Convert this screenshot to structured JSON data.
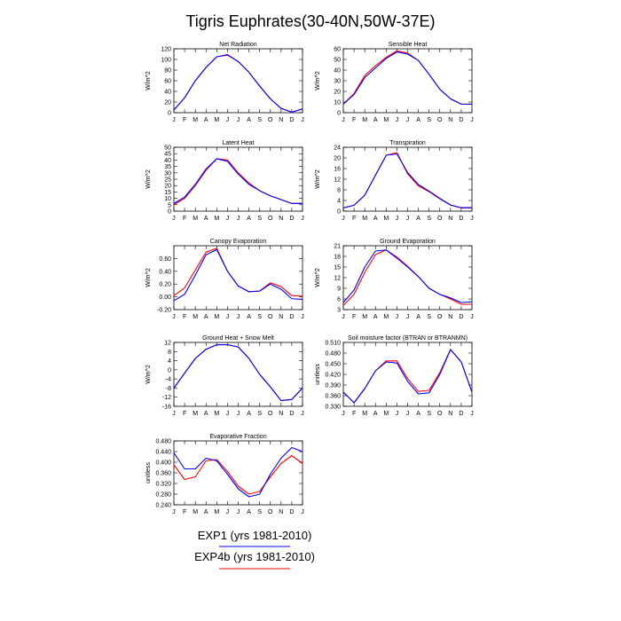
{
  "title": "Tigris Euphrates(30-40N,50W-37E)",
  "months": [
    "J",
    "F",
    "M",
    "A",
    "M",
    "J",
    "J",
    "A",
    "S",
    "O",
    "N",
    "D",
    "J"
  ],
  "legend": [
    {
      "label": "EXP1 (yrs 1981-2010)",
      "color": "#0000ff"
    },
    {
      "label": "EXP4b (yrs 1981-2010)",
      "color": "#ff0000"
    }
  ],
  "chart_data": [
    {
      "type": "line",
      "title": "Net Radiation",
      "ylabel": "W/m^2",
      "ylim": [
        0,
        120
      ],
      "yticks": [
        "0",
        "20",
        "40",
        "60",
        "80",
        "100",
        "120"
      ],
      "yvals": [
        0,
        20,
        40,
        60,
        80,
        100,
        120
      ],
      "series": [
        {
          "name": "EXP1 (yrs 1981-2010)",
          "color": "#0000ff",
          "values": [
            5,
            28,
            60,
            85,
            105,
            109,
            96,
            76,
            50,
            26,
            8,
            1,
            7
          ]
        },
        {
          "name": "EXP4b (yrs 1981-2010)",
          "color": "#ff0000",
          "values": [
            5,
            28,
            60,
            85,
            105,
            108,
            96,
            76,
            50,
            26,
            8,
            1,
            7
          ]
        }
      ]
    },
    {
      "type": "line",
      "title": "Sensible Heat",
      "ylabel": "W/m^2",
      "ylim": [
        0,
        60
      ],
      "yticks": [
        "0",
        "10",
        "20",
        "30",
        "40",
        "50",
        "60"
      ],
      "yvals": [
        0,
        10,
        20,
        30,
        40,
        50,
        60
      ],
      "series": [
        {
          "name": "EXP1 (yrs 1981-2010)",
          "color": "#0000ff",
          "values": [
            8,
            17,
            33,
            42,
            51,
            57,
            55,
            49,
            36,
            22,
            13,
            8,
            8
          ]
        },
        {
          "name": "EXP4b (yrs 1981-2010)",
          "color": "#ff0000",
          "values": [
            8,
            18,
            35,
            44,
            52,
            58,
            56,
            49,
            36,
            22,
            13,
            8,
            8
          ]
        }
      ]
    },
    {
      "type": "line",
      "title": "Latent Heat",
      "ylabel": "W/m^2",
      "ylim": [
        0,
        50
      ],
      "yticks": [
        "0",
        "5",
        "10",
        "15",
        "20",
        "25",
        "30",
        "35",
        "40",
        "45",
        "50"
      ],
      "yvals": [
        0,
        5,
        10,
        15,
        20,
        25,
        30,
        35,
        40,
        45,
        50
      ],
      "series": [
        {
          "name": "EXP1 (yrs 1981-2010)",
          "color": "#0000ff",
          "values": [
            6,
            11,
            21,
            33,
            41,
            39,
            29,
            21,
            16,
            12,
            9,
            6,
            6
          ]
        },
        {
          "name": "EXP4b (yrs 1981-2010)",
          "color": "#ff0000",
          "values": [
            5,
            10,
            20,
            32,
            41,
            40,
            30,
            22,
            16,
            12,
            9,
            6,
            6
          ]
        }
      ]
    },
    {
      "type": "line",
      "title": "Transpiration",
      "ylabel": "W/m^2",
      "ylim": [
        0,
        24
      ],
      "yticks": [
        "0",
        "4",
        "8",
        "12",
        "16",
        "20",
        "24"
      ],
      "yvals": [
        0,
        4,
        8,
        12,
        16,
        20,
        24
      ],
      "series": [
        {
          "name": "EXP1 (yrs 1981-2010)",
          "color": "#0000ff",
          "values": [
            1.2,
            2.2,
            6,
            13.5,
            21,
            21.5,
            14.5,
            10,
            7.5,
            4.8,
            2.3,
            1.3,
            1.3
          ]
        },
        {
          "name": "EXP4b (yrs 1981-2010)",
          "color": "#ff0000",
          "values": [
            1.2,
            2.2,
            6,
            13.5,
            21,
            22,
            14,
            9.5,
            7.3,
            4.6,
            2.3,
            1.2,
            1.2
          ]
        }
      ]
    },
    {
      "type": "line",
      "title": "Canopy Evaporation",
      "ylabel": "W/m^2",
      "ylim": [
        -0.2,
        0.8
      ],
      "yticks": [
        "-0.20",
        "0.00",
        "0.20",
        "0.40",
        "0.60"
      ],
      "yvals": [
        -0.2,
        0,
        0.2,
        0.4,
        0.6
      ],
      "series": [
        {
          "name": "EXP1 (yrs 1981-2010)",
          "color": "#0000ff",
          "values": [
            -0.06,
            0.04,
            0.34,
            0.66,
            0.74,
            0.4,
            0.17,
            0.08,
            0.09,
            0.2,
            0.12,
            -0.03,
            -0.04
          ]
        },
        {
          "name": "EXP4b (yrs 1981-2010)",
          "color": "#ff0000",
          "values": [
            0.02,
            0.14,
            0.42,
            0.7,
            0.76,
            0.4,
            0.17,
            0.08,
            0.09,
            0.22,
            0.16,
            0.02,
            0.01
          ]
        }
      ]
    },
    {
      "type": "line",
      "title": "Ground Evaporation",
      "ylabel": "W/m^2",
      "ylim": [
        3,
        21
      ],
      "yticks": [
        "3",
        "6",
        "9",
        "12",
        "15",
        "18",
        "21"
      ],
      "yvals": [
        3,
        6,
        9,
        12,
        15,
        18,
        21
      ],
      "series": [
        {
          "name": "EXP1 (yrs 1981-2010)",
          "color": "#0000ff",
          "values": [
            5,
            8.5,
            15,
            19.5,
            19.8,
            17.5,
            15,
            12.3,
            9,
            7.3,
            6.3,
            5,
            5.2
          ]
        },
        {
          "name": "EXP4b (yrs 1981-2010)",
          "color": "#ff0000",
          "values": [
            4.2,
            7.3,
            13.5,
            18.5,
            19.8,
            17.8,
            15.2,
            12.3,
            9,
            7.3,
            6,
            4.5,
            4.5
          ]
        }
      ]
    },
    {
      "type": "line",
      "title": "Ground Heat + Snow Melt",
      "ylabel": "W/m^2",
      "ylim": [
        -16,
        12
      ],
      "yticks": [
        "-16",
        "-12",
        "-8",
        "-4",
        "0",
        "4",
        "8",
        "12"
      ],
      "yvals": [
        -16,
        -12,
        -8,
        -4,
        0,
        4,
        8,
        12
      ],
      "series": [
        {
          "name": "EXP1 (yrs 1981-2010)",
          "color": "#0000ff",
          "values": [
            -8,
            -1.5,
            5,
            9,
            11,
            11,
            10,
            5,
            -2,
            -7.5,
            -13.5,
            -13,
            -8
          ]
        },
        {
          "name": "EXP4b (yrs 1981-2010)",
          "color": "#ff0000",
          "values": [
            -8,
            -1.5,
            5,
            9,
            11,
            11,
            10,
            5,
            -2,
            -7.5,
            -13.5,
            -13,
            -8
          ]
        }
      ]
    },
    {
      "type": "line",
      "title": "Soil moisture factor (BTRAN or BTRANMN)",
      "ylabel": "unitless",
      "ylim": [
        0.33,
        0.51
      ],
      "yticks": [
        "0.330",
        "0.360",
        "0.390",
        "0.420",
        "0.450",
        "0.480",
        "0.510"
      ],
      "yvals": [
        0.33,
        0.36,
        0.39,
        0.42,
        0.45,
        0.48,
        0.51
      ],
      "series": [
        {
          "name": "EXP1 (yrs 1981-2010)",
          "color": "#0000ff",
          "values": [
            0.37,
            0.34,
            0.38,
            0.43,
            0.455,
            0.452,
            0.4,
            0.365,
            0.368,
            0.42,
            0.49,
            0.455,
            0.37
          ]
        },
        {
          "name": "EXP4b (yrs 1981-2010)",
          "color": "#ff0000",
          "values": [
            0.37,
            0.34,
            0.38,
            0.43,
            0.458,
            0.458,
            0.408,
            0.372,
            0.375,
            0.425,
            0.49,
            0.455,
            0.37
          ]
        }
      ]
    },
    {
      "type": "line",
      "title": "Evaporative Fraction",
      "ylabel": "unitless",
      "ylim": [
        0.24,
        0.48
      ],
      "yticks": [
        "0.240",
        "0.280",
        "0.320",
        "0.360",
        "0.400",
        "0.440",
        "0.480"
      ],
      "yvals": [
        0.24,
        0.28,
        0.32,
        0.36,
        0.4,
        0.44,
        0.48
      ],
      "series": [
        {
          "name": "EXP1 (yrs 1981-2010)",
          "color": "#0000ff",
          "values": [
            0.435,
            0.375,
            0.375,
            0.415,
            0.405,
            0.355,
            0.3,
            0.27,
            0.28,
            0.355,
            0.415,
            0.455,
            0.44
          ]
        },
        {
          "name": "EXP4b (yrs 1981-2010)",
          "color": "#ff0000",
          "values": [
            0.39,
            0.335,
            0.345,
            0.405,
            0.41,
            0.365,
            0.31,
            0.28,
            0.29,
            0.345,
            0.395,
            0.425,
            0.395
          ]
        }
      ]
    }
  ]
}
